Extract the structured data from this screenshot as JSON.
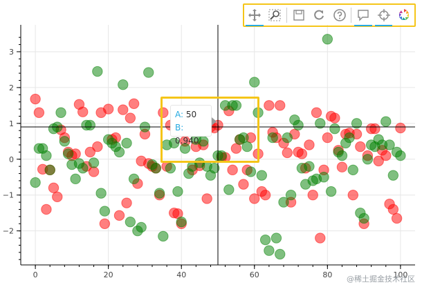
{
  "chart_data": {
    "type": "scatter",
    "title": "",
    "xlabel": "",
    "ylabel": "",
    "xlim": [
      -4,
      104
    ],
    "ylim": [
      -2.95,
      3.75
    ],
    "xticks": [
      0,
      20,
      40,
      60,
      80,
      100
    ],
    "yticks": [
      -2,
      -1,
      0,
      1,
      2,
      3
    ],
    "grid": true,
    "crosshair": {
      "x": 50,
      "y": 0.9
    },
    "series": [
      {
        "color": "#ff0000",
        "points": [
          [
            0,
            1.68
          ],
          [
            1,
            1.3
          ],
          [
            2,
            -0.28
          ],
          [
            3,
            -1.4
          ],
          [
            4,
            -0.3
          ],
          [
            5,
            -0.8
          ],
          [
            6,
            -1.05
          ],
          [
            7,
            0.82
          ],
          [
            8,
            0.6
          ],
          [
            9,
            0.2
          ],
          [
            10,
            0.1
          ],
          [
            11,
            0.15
          ],
          [
            12,
            1.53
          ],
          [
            13,
            1.32
          ],
          [
            14,
            -0.2
          ],
          [
            15,
            0.2
          ],
          [
            16,
            -0.35
          ],
          [
            17,
            0.35
          ],
          [
            18,
            1.3
          ],
          [
            19,
            -1.8
          ],
          [
            20,
            1.4
          ],
          [
            21,
            0.55
          ],
          [
            22,
            0.6
          ],
          [
            23,
            -1.57
          ],
          [
            24,
            1.38
          ],
          [
            25,
            -1.22
          ],
          [
            26,
            1.15
          ],
          [
            27,
            1.55
          ],
          [
            28,
            -0.68
          ],
          [
            29,
            -0.05
          ],
          [
            30,
            0.7
          ],
          [
            31,
            -0.12
          ],
          [
            32,
            -0.2
          ],
          [
            33,
            -0.25
          ],
          [
            34,
            -1.0
          ],
          [
            35,
            1.3
          ],
          [
            36,
            -0.2
          ],
          [
            37,
            0.95
          ],
          [
            38,
            -1.5
          ],
          [
            39,
            -1.52
          ],
          [
            40,
            -1.8
          ],
          [
            41,
            0.5
          ],
          [
            42,
            1.05
          ],
          [
            43,
            -0.3
          ],
          [
            44,
            0.35
          ],
          [
            45,
            -0.18
          ],
          [
            46,
            0.4
          ],
          [
            47,
            -1.1
          ],
          [
            48,
            0.9
          ],
          [
            49,
            0.87
          ],
          [
            50,
            0.95
          ],
          [
            51,
            0.05
          ],
          [
            52,
            0.05
          ],
          [
            53,
            1.35
          ],
          [
            54,
            -0.3
          ],
          [
            55,
            0.3
          ],
          [
            56,
            0.55
          ],
          [
            57,
            -0.7
          ],
          [
            58,
            -0.3
          ],
          [
            59,
            0.6
          ],
          [
            60,
            -1.1
          ],
          [
            61,
            0.15
          ],
          [
            62,
            -0.9
          ],
          [
            63,
            -1.0
          ],
          [
            64,
            1.5
          ],
          [
            65,
            0.75
          ],
          [
            66,
            0.6
          ],
          [
            67,
            1.5
          ],
          [
            68,
            0.45
          ],
          [
            69,
            0.18
          ],
          [
            70,
            -1.2
          ],
          [
            71,
            0.7
          ],
          [
            72,
            0.2
          ],
          [
            73,
            0.15
          ],
          [
            74,
            -0.25
          ],
          [
            75,
            0.4
          ],
          [
            76,
            -1.0
          ],
          [
            77,
            1.3
          ],
          [
            78,
            -2.2
          ],
          [
            79,
            -0.3
          ],
          [
            80,
            0.6
          ],
          [
            81,
            1.2
          ],
          [
            82,
            1.15
          ],
          [
            83,
            0.25
          ],
          [
            84,
            -0.22
          ],
          [
            85,
            0.7
          ],
          [
            86,
            0.73
          ],
          [
            87,
            -1.0
          ],
          [
            88,
            0.7
          ],
          [
            89,
            0.35
          ],
          [
            90,
            -1.8
          ],
          [
            91,
            0.1
          ],
          [
            92,
            0.85
          ],
          [
            93,
            0.85
          ],
          [
            94,
            -0.05
          ],
          [
            95,
            0.25
          ],
          [
            96,
            0.1
          ],
          [
            97,
            -1.25
          ],
          [
            98,
            -1.4
          ],
          [
            99,
            -1.65
          ],
          [
            100,
            0.87
          ]
        ]
      },
      {
        "color": "#008000",
        "points": [
          [
            0,
            -0.65
          ],
          [
            1,
            0.3
          ],
          [
            2,
            0.3
          ],
          [
            3,
            0.1
          ],
          [
            4,
            -0.3
          ],
          [
            5,
            0.85
          ],
          [
            6,
            0.9
          ],
          [
            7,
            1.3
          ],
          [
            8,
            0.5
          ],
          [
            9,
            0.15
          ],
          [
            10,
            -0.15
          ],
          [
            11,
            -0.55
          ],
          [
            12,
            -0.12
          ],
          [
            13,
            -0.25
          ],
          [
            14,
            0.95
          ],
          [
            15,
            0.95
          ],
          [
            16,
            -0.1
          ],
          [
            17,
            2.45
          ],
          [
            18,
            -0.95
          ],
          [
            19,
            -1.45
          ],
          [
            20,
            0.55
          ],
          [
            21,
            0.45
          ],
          [
            22,
            0.35
          ],
          [
            23,
            0.2
          ],
          [
            24,
            2.08
          ],
          [
            25,
            0.45
          ],
          [
            26,
            -1.75
          ],
          [
            27,
            -0.55
          ],
          [
            28,
            -2.0
          ],
          [
            29,
            -1.9
          ],
          [
            30,
            0.9
          ],
          [
            31,
            2.42
          ],
          [
            32,
            -0.15
          ],
          [
            33,
            -0.25
          ],
          [
            34,
            -0.95
          ],
          [
            35,
            -2.15
          ],
          [
            36,
            0.4
          ],
          [
            37,
            -0.25
          ],
          [
            38,
            0.45
          ],
          [
            39,
            -0.9
          ],
          [
            40,
            -1.75
          ],
          [
            41,
            0.3
          ],
          [
            42,
            -0.4
          ],
          [
            43,
            -0.2
          ],
          [
            44,
            0.55
          ],
          [
            45,
            -0.1
          ],
          [
            46,
            0.5
          ],
          [
            47,
            -0.2
          ],
          [
            48,
            -0.45
          ],
          [
            49,
            -0.25
          ],
          [
            50,
            0.1
          ],
          [
            51,
            0.1
          ],
          [
            52,
            1.5
          ],
          [
            53,
            -0.85
          ],
          [
            54,
            1.5
          ],
          [
            55,
            1.5
          ],
          [
            56,
            0.55
          ],
          [
            57,
            0.6
          ],
          [
            58,
            0.35
          ],
          [
            59,
            -0.35
          ],
          [
            60,
            2.15
          ],
          [
            61,
            1.3
          ],
          [
            62,
            -0.45
          ],
          [
            63,
            -2.25
          ],
          [
            64,
            -2.55
          ],
          [
            65,
            0.6
          ],
          [
            66,
            -2.2
          ],
          [
            67,
            -2.65
          ],
          [
            68,
            -1.2
          ],
          [
            69,
            0.6
          ],
          [
            70,
            -1.0
          ],
          [
            71,
            1.1
          ],
          [
            72,
            0.95
          ],
          [
            73,
            -0.25
          ],
          [
            74,
            -0.7
          ],
          [
            75,
            -0.2
          ],
          [
            76,
            -0.6
          ],
          [
            77,
            -0.55
          ],
          [
            78,
            1.0
          ],
          [
            79,
            -0.5
          ],
          [
            80,
            3.35
          ],
          [
            81,
            -0.9
          ],
          [
            82,
            0.85
          ],
          [
            83,
            0.2
          ],
          [
            84,
            0.1
          ],
          [
            85,
            0.45
          ],
          [
            86,
            0.6
          ],
          [
            87,
            -0.3
          ],
          [
            88,
            1.0
          ],
          [
            89,
            -1.5
          ],
          [
            90,
            -1.65
          ],
          [
            91,
            0.0
          ],
          [
            92,
            0.4
          ],
          [
            93,
            0.35
          ],
          [
            94,
            0.55
          ],
          [
            95,
            0.4
          ],
          [
            96,
            1.05
          ],
          [
            97,
            0.4
          ],
          [
            98,
            -0.45
          ],
          [
            99,
            0.2
          ],
          [
            100,
            0.1
          ]
        ]
      }
    ]
  },
  "tooltip": {
    "label_a": "A:",
    "value_a": "50",
    "label_b": "B:",
    "value_b": "0.940"
  },
  "toolbar": {
    "icons": [
      "pan-icon",
      "box-zoom-icon",
      "save-icon",
      "reset-icon",
      "help-icon",
      "hover-icon",
      "crosshair-icon",
      "bokeh-logo"
    ],
    "accent_color": "#26aae1",
    "highlight_color": "#f5c518"
  },
  "watermark": "@稀土掘金技术社区"
}
